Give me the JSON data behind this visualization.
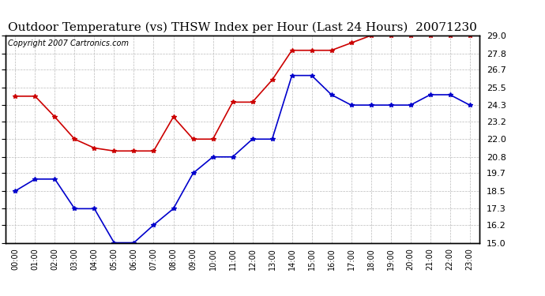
{
  "title": "Outdoor Temperature (vs) THSW Index per Hour (Last 24 Hours)  20071230",
  "copyright_text": "Copyright 2007 Cartronics.com",
  "hours": [
    "00:00",
    "01:00",
    "02:00",
    "03:00",
    "04:00",
    "05:00",
    "06:00",
    "07:00",
    "08:00",
    "09:00",
    "10:00",
    "11:00",
    "12:00",
    "13:00",
    "14:00",
    "15:00",
    "16:00",
    "17:00",
    "18:00",
    "19:00",
    "20:00",
    "21:00",
    "22:00",
    "23:00"
  ],
  "red_data": [
    24.9,
    24.9,
    23.5,
    22.0,
    21.4,
    21.2,
    21.2,
    21.2,
    23.5,
    22.0,
    22.0,
    24.5,
    24.5,
    26.0,
    28.0,
    28.0,
    28.0,
    28.5,
    29.0,
    29.0,
    29.0,
    29.0,
    29.0,
    29.0
  ],
  "blue_data": [
    18.5,
    19.3,
    19.3,
    17.3,
    17.3,
    15.0,
    15.0,
    16.2,
    17.3,
    19.7,
    20.8,
    20.8,
    22.0,
    22.0,
    26.3,
    26.3,
    25.0,
    24.3,
    24.3,
    24.3,
    24.3,
    25.0,
    25.0,
    24.3
  ],
  "ylim": [
    15.0,
    29.0
  ],
  "yticks": [
    15.0,
    16.2,
    17.3,
    18.5,
    19.7,
    20.8,
    22.0,
    23.2,
    24.3,
    25.5,
    26.7,
    27.8,
    29.0
  ],
  "red_color": "#cc0000",
  "blue_color": "#0000cc",
  "bg_color": "#ffffff",
  "grid_color": "#bbbbbb",
  "title_fontsize": 11,
  "copyright_fontsize": 7
}
